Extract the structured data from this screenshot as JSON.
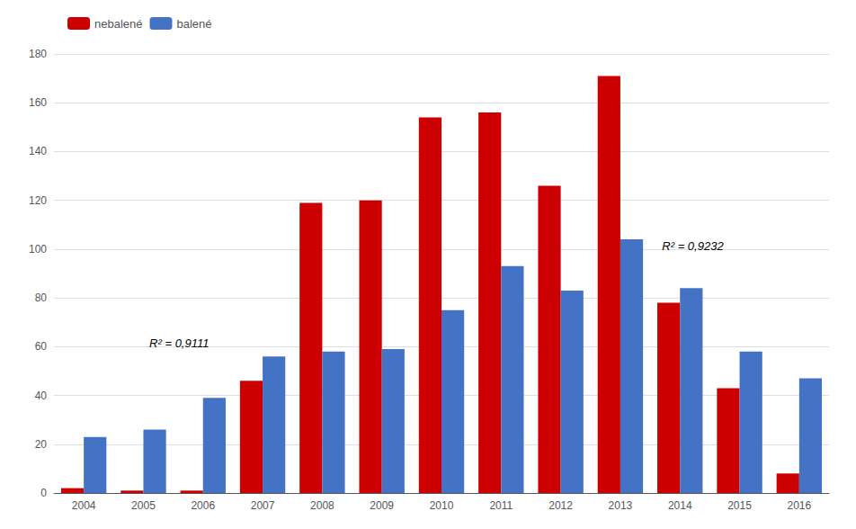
{
  "chart_data": {
    "type": "bar",
    "categories": [
      "2004",
      "2005",
      "2006",
      "2007",
      "2008",
      "2009",
      "2010",
      "2011",
      "2012",
      "2013",
      "2014",
      "2015",
      "2016"
    ],
    "series": [
      {
        "name": "nebalené",
        "color": "#CC0000",
        "values": [
          2,
          1,
          1,
          46,
          119,
          120,
          154,
          156,
          126,
          171,
          78,
          43,
          8
        ]
      },
      {
        "name": "balené",
        "color": "#4472C4",
        "values": [
          23,
          26,
          39,
          56,
          58,
          59,
          75,
          93,
          83,
          104,
          84,
          58,
          47
        ]
      }
    ],
    "annotations": [
      "R² = 0,9111",
      "R² = 0,9232"
    ],
    "ylim": [
      0,
      180
    ],
    "yticks": [
      0,
      20,
      40,
      60,
      80,
      100,
      120,
      140,
      160,
      180
    ],
    "grid": true,
    "legend": "upper left"
  }
}
